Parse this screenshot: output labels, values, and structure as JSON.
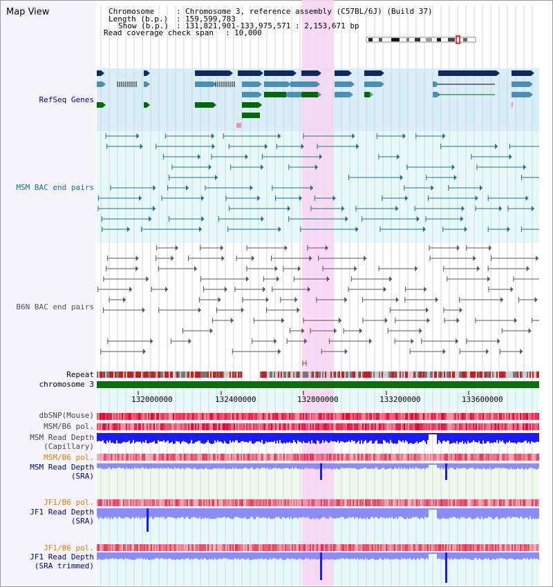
{
  "view_title": "Map View",
  "info": {
    "chromosome_key": "Chromosome",
    "chromosome_val": "Chromosome 3, reference assembly (C57BL/6J) (Build 37)",
    "length_key": "Length (b.p.)",
    "length_val": "159,599,783",
    "show_key": "Show (b.p.)",
    "show_val": "131,821,901-133,975,571 : 2,153,671 bp",
    "coverage_key": "Read coverage check span",
    "coverage_val": "10,000"
  },
  "tracks": {
    "refseq": "RefSeq Genes",
    "msm_bac": "MSM BAC end pairs",
    "b6n_bac": "B6N BAC end pairs",
    "repeat": "Repeat",
    "chromosome": "chromosome 3",
    "dbsnp": "dbSNP(Mouse)",
    "msm_pol_1": "MSM/B6 pol.",
    "msm_depth_cap_1": "MSM Read Depth",
    "msm_depth_cap_2": "(Capillary)",
    "msm_pol_2": "MSM/B6 pol.",
    "msm_depth_sra_1": "MSM Read Depth",
    "msm_depth_sra_2": "(SRA)",
    "jf1_pol_1": "JF1/B6 pol.",
    "jf1_depth_sra_1": "JF1 Read Depth",
    "jf1_depth_sra_2": "(SRA)",
    "jf1_pol_2": "JF1/B6 pol.",
    "jf1_depth_trim_1": "JF1 Read Depth",
    "jf1_depth_trim_2": "(SRA trimmed)"
  },
  "axis_ticks": [
    "132000000",
    "132400000",
    "132800000",
    "133200000",
    "133600000"
  ],
  "colors": {
    "highlight": "#f9d4f2",
    "refseq_bg": "#d8eef9",
    "bac_bg": "#e6fafa",
    "gene_navy": "#0b2c5e",
    "gene_steel": "#4a8fb4",
    "gene_green": "#006a00",
    "msm_pair": "#1f6e8c",
    "b6n_pair": "#555555",
    "snp_red": "#e4002b",
    "depth_blue": "#1a1aff",
    "depth_light": "#8c8cff",
    "label_navy": "#00008b",
    "label_orange": "#e08000"
  }
}
